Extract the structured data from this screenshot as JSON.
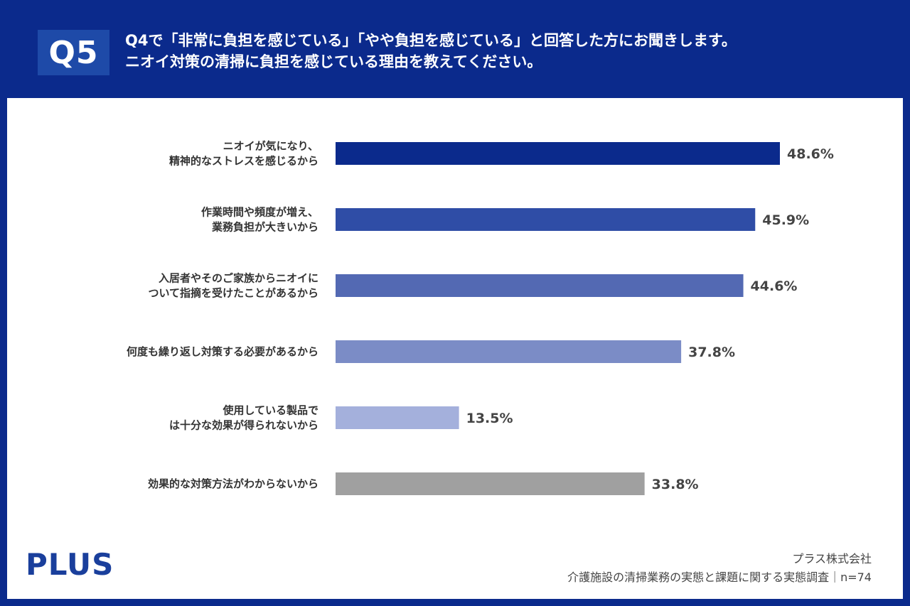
{
  "header": {
    "badge": "Q5",
    "question_line1": "Q4で「非常に負担を感じている」「やや負担を感じている」と回答した方にお聞きします。",
    "question_line2": "ニオイ対策の清掃に負担を感じている理由を教えてください。"
  },
  "colors": {
    "header_bg": "#0b2a8c",
    "badge_bg": "#1e4aa8",
    "bars": [
      "#0b2a8c",
      "#2f4da6",
      "#5369b3",
      "#7b8cc6",
      "#a4b0dc",
      "#a0a0a0"
    ]
  },
  "chart_data": {
    "type": "bar",
    "orientation": "horizontal",
    "categories": [
      [
        "ニオイが気になり、",
        "精神的なストレスを感じるから"
      ],
      [
        "作業時間や頻度が増え、",
        "業務負担が大きいから"
      ],
      [
        "入居者やそのご家族からニオイに",
        "ついて指摘を受けたことがあるから"
      ],
      [
        "何度も繰り返し対策する必要があるから"
      ],
      [
        "使用している製品で",
        "は十分な効果が得られないから"
      ],
      [
        "効果的な対策方法がわからないから"
      ]
    ],
    "values": [
      48.6,
      45.9,
      44.6,
      37.8,
      13.5,
      33.8
    ],
    "value_labels": [
      "48.6%",
      "45.9%",
      "44.6%",
      "37.8%",
      "13.5%",
      "33.8%"
    ],
    "unit": "%",
    "xlim": [
      0,
      100
    ],
    "grid": false
  },
  "logo": "PLUS",
  "footer": {
    "company": "プラス株式会社",
    "survey": "介護施設の清掃業務の実態と課題に関する実態調査｜n=74"
  }
}
